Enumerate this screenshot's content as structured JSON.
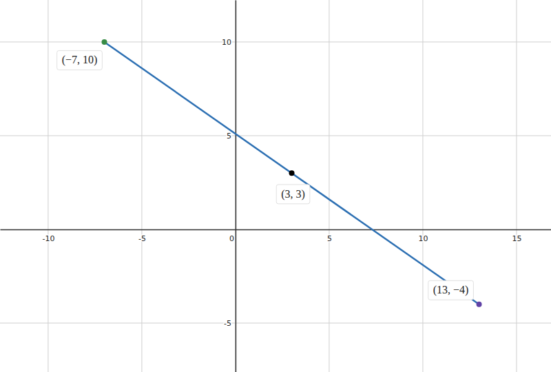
{
  "chart_data": {
    "type": "line",
    "xlim": [
      -12.57,
      16.84
    ],
    "ylim": [
      -7.61,
      12.24
    ],
    "xticks": [
      -10,
      -5,
      0,
      5,
      10,
      15
    ],
    "yticks": [
      -5,
      5,
      10
    ],
    "grid": true,
    "data_labels": true,
    "series": [
      {
        "type": "line",
        "color": "#2d70b3",
        "x": [
          -7,
          13
        ],
        "values": [
          10,
          -4
        ]
      },
      {
        "type": "scatter",
        "marker": "circle",
        "x": [
          -7,
          3,
          13
        ],
        "values": [
          10,
          3,
          -4
        ],
        "colors": [
          "#388c46",
          "#000000",
          "#6042a6"
        ],
        "value_labels": [
          "(−7, 10)",
          "(3, 3)",
          "(13, −4)"
        ]
      }
    ]
  }
}
